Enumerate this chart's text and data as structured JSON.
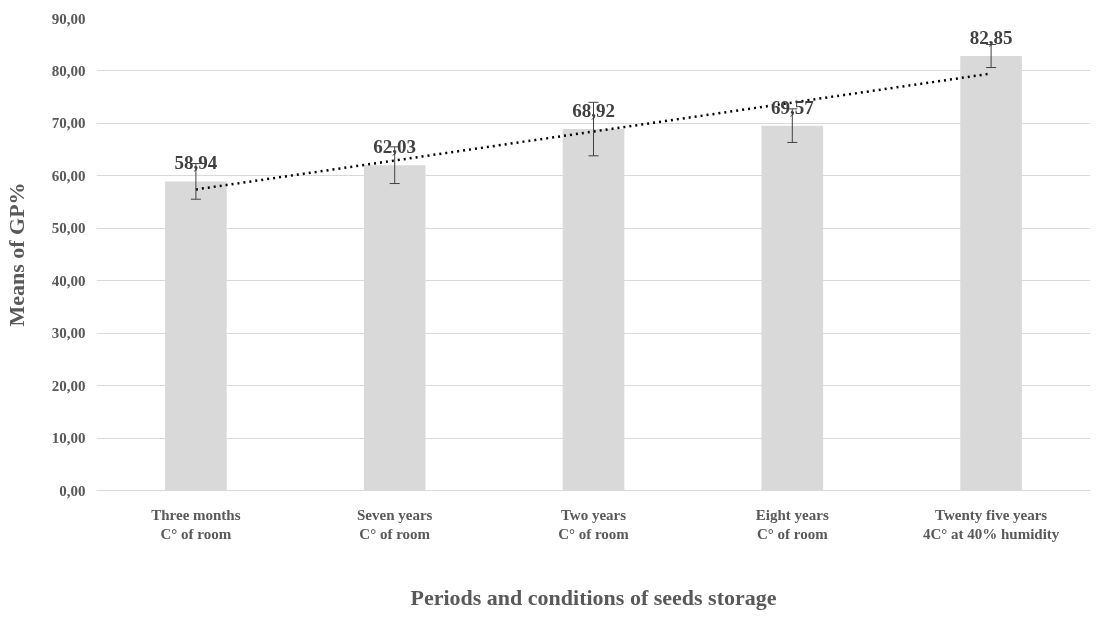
{
  "chart_data": {
    "type": "bar",
    "xlabel": "Periods and conditions of seeds storage",
    "ylabel": "Means of GP%",
    "categories": [
      "Three months\nC° of room",
      "Seven years\nC° of room",
      "Two years\nC° of room",
      "Eight years\nC° of room",
      "Twenty five years\n4C° at 40% humidity"
    ],
    "series": [
      {
        "color": "#d9d9d9",
        "values": [
          58.94,
          62.03,
          68.92,
          69.57,
          82.85
        ],
        "errors": [
          3.4,
          3.5,
          5.1,
          3.2,
          2.2
        ],
        "value_labels": [
          "58,94",
          "62,03",
          "68,92",
          "69,57",
          "82,85"
        ]
      },
      {
        "type": "line",
        "color": "#000000",
        "line_style": "dotted",
        "x": [
          "Three months\nC° of room",
          "Twenty five years\n4C° at 40% humidity"
        ],
        "values": [
          57.4,
          79.5
        ]
      }
    ],
    "ylim": [
      0,
      90
    ],
    "yticks": [
      {
        "value": 0,
        "label": "0,00"
      },
      {
        "value": 10,
        "label": "10,00"
      },
      {
        "value": 20,
        "label": "20,00"
      },
      {
        "value": 30,
        "label": "30,00"
      },
      {
        "value": 40,
        "label": "40,00"
      },
      {
        "value": 50,
        "label": "50,00"
      },
      {
        "value": 60,
        "label": "60,00"
      },
      {
        "value": 70,
        "label": "70,00"
      },
      {
        "value": 80,
        "label": "80,00"
      },
      {
        "value": 90,
        "label": "90,00"
      }
    ],
    "grid": "y"
  }
}
